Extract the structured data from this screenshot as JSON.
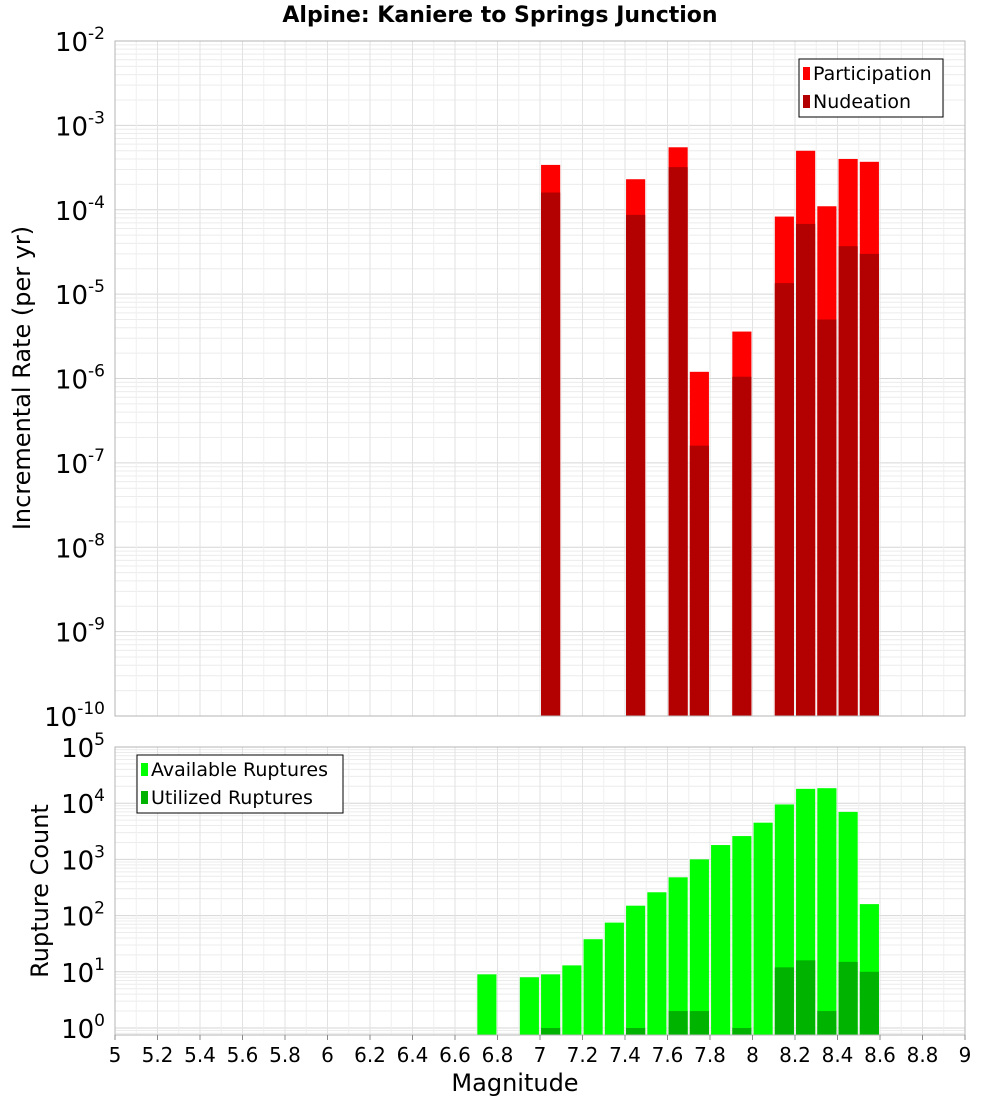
{
  "title": "Alpine: Kaniere to Springs Junction",
  "chart_data": [
    {
      "type": "bar",
      "panel": "top",
      "ylabel": "Incremental Rate (per yr)",
      "yscale": "log",
      "ylim": [
        1e-10,
        0.01
      ],
      "y_tick_exponents": [
        -10,
        -9,
        -8,
        -7,
        -6,
        -5,
        -4,
        -3,
        -2
      ],
      "xlim": [
        5,
        9
      ],
      "bar_width": 0.09,
      "legend": {
        "position": "top-right",
        "entries": [
          "Participation",
          "Nudeation"
        ]
      },
      "series": [
        {
          "name": "Participation",
          "color": "#ff0000",
          "x": [
            7.05,
            7.45,
            7.65,
            7.75,
            7.95,
            8.15,
            8.25,
            8.35,
            8.45,
            8.55
          ],
          "values": [
            0.00034,
            0.00023,
            0.00055,
            1.2e-06,
            3.6e-06,
            8.3e-05,
            0.0005,
            0.00011,
            0.0004,
            0.00037
          ]
        },
        {
          "name": "Nucleation",
          "color": "#b30000",
          "x": [
            7.05,
            7.45,
            7.65,
            7.75,
            7.95,
            8.15,
            8.25,
            8.35,
            8.45,
            8.55
          ],
          "values": [
            0.00016,
            8.7e-05,
            0.00032,
            1.6e-07,
            1.05e-06,
            1.35e-05,
            6.8e-05,
            5e-06,
            3.7e-05,
            3e-05
          ]
        }
      ]
    },
    {
      "type": "bar",
      "panel": "bottom",
      "ylabel": "Rupture Count",
      "xlabel": "Magnitude",
      "yscale": "log",
      "ylim": [
        0.75,
        100000.0
      ],
      "y_tick_exponents": [
        0,
        1,
        2,
        3,
        4,
        5
      ],
      "xlim": [
        5,
        9
      ],
      "x_ticks": [
        "5",
        "5.2",
        "5.4",
        "5.6",
        "5.8",
        "6",
        "6.2",
        "6.4",
        "6.6",
        "6.8",
        "7",
        "7.2",
        "7.4",
        "7.6",
        "7.8",
        "8",
        "8.2",
        "8.4",
        "8.6",
        "8.8",
        "9"
      ],
      "bar_width": 0.09,
      "legend": {
        "position": "top-left",
        "entries": [
          "Available Ruptures",
          "Utilized Ruptures"
        ]
      },
      "series": [
        {
          "name": "Available Ruptures",
          "color": "#00ff00",
          "x": [
            6.75,
            6.95,
            7.05,
            7.15,
            7.25,
            7.35,
            7.45,
            7.55,
            7.65,
            7.75,
            7.85,
            7.95,
            8.05,
            8.15,
            8.25,
            8.35,
            8.45,
            8.55
          ],
          "values": [
            9,
            8,
            9,
            13,
            38,
            75,
            150,
            260,
            480,
            1000,
            1800,
            2600,
            4500,
            9500,
            18000,
            18500,
            7000,
            160
          ]
        },
        {
          "name": "Utilized Ruptures",
          "color": "#00b300",
          "x": [
            7.05,
            7.45,
            7.65,
            7.75,
            7.95,
            8.15,
            8.25,
            8.35,
            8.45,
            8.55
          ],
          "values": [
            1,
            1,
            2,
            2,
            1,
            12,
            16,
            2,
            15,
            10
          ]
        }
      ]
    }
  ]
}
